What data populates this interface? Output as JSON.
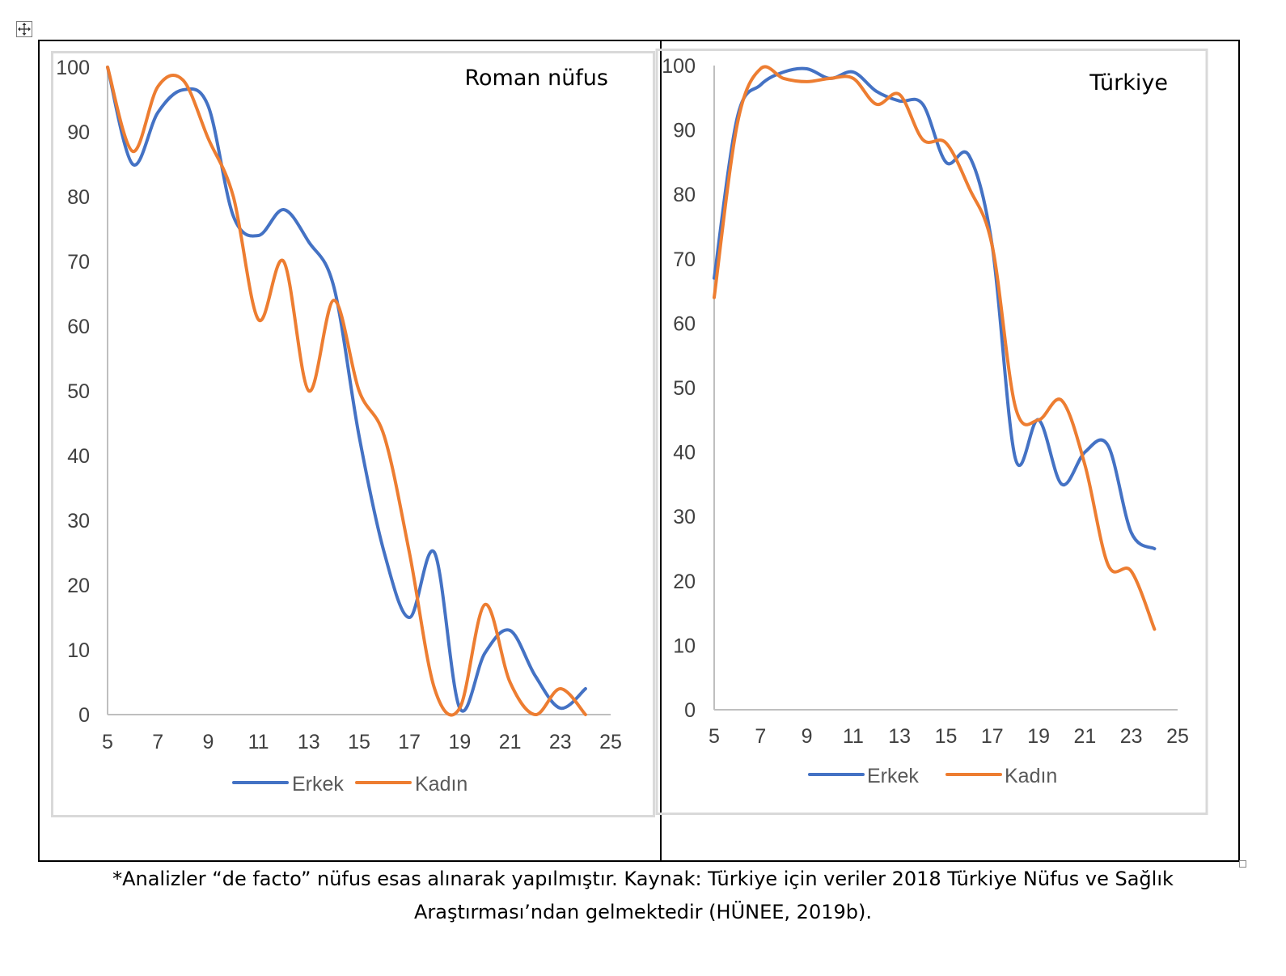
{
  "caption": {
    "line1": "*Analizler “de facto” nüfus esas alınarak yapılmıştır. Kaynak: Türkiye için veriler 2018 Türkiye Nüfus ve Sağlık",
    "line2": "Araştırması’ndan gelmektedir (HÜNEE, 2019b)."
  },
  "icons": {
    "move_handle": "move-arrows-icon",
    "resize_handle": "resize-square-icon"
  },
  "chart_data": [
    {
      "type": "line",
      "title": "Roman nüfus",
      "xlabel": "",
      "ylabel": "",
      "xlim": [
        5,
        25
      ],
      "ylim": [
        0,
        100
      ],
      "xticks": [
        "5",
        "7",
        "9",
        "11",
        "13",
        "15",
        "17",
        "19",
        "21",
        "23",
        "25"
      ],
      "yticks": [
        "0",
        "10",
        "20",
        "30",
        "40",
        "50",
        "60",
        "70",
        "80",
        "90",
        "100"
      ],
      "grid": false,
      "legend_position": "bottom",
      "x": [
        5,
        6,
        7,
        8,
        9,
        10,
        11,
        12,
        13,
        14,
        15,
        16,
        17,
        18,
        19,
        20,
        21,
        22,
        23,
        24
      ],
      "series": [
        {
          "name": "Erkek",
          "color": "#4472c4",
          "values": [
            100,
            85,
            93,
            96.5,
            94,
            77,
            74,
            78,
            73,
            66,
            43,
            25,
            15,
            25,
            1,
            9.5,
            13,
            6,
            1,
            4
          ]
        },
        {
          "name": "Kadın",
          "color": "#ed7d31",
          "values": [
            100,
            87,
            97,
            98,
            89,
            80,
            61,
            70,
            50,
            64,
            50,
            43,
            25,
            4,
            1,
            17,
            5,
            0,
            4,
            0
          ]
        }
      ]
    },
    {
      "type": "line",
      "title": "Türkiye",
      "xlabel": "",
      "ylabel": "",
      "xlim": [
        5,
        25
      ],
      "ylim": [
        0,
        100
      ],
      "xticks": [
        "5",
        "7",
        "9",
        "11",
        "13",
        "15",
        "17",
        "19",
        "21",
        "23",
        "25"
      ],
      "yticks": [
        "0",
        "10",
        "20",
        "30",
        "40",
        "50",
        "60",
        "70",
        "80",
        "90",
        "100"
      ],
      "grid": false,
      "legend_position": "bottom",
      "x": [
        5,
        6,
        7,
        8,
        9,
        10,
        11,
        12,
        13,
        14,
        15,
        16,
        17,
        18,
        19,
        20,
        21,
        22,
        23,
        24
      ],
      "series": [
        {
          "name": "Erkek",
          "color": "#4472c4",
          "values": [
            67,
            92,
            97,
            99,
            99.5,
            98,
            99,
            96,
            94.5,
            94,
            85,
            86,
            72,
            39,
            45,
            35,
            40,
            41,
            27.5,
            25
          ]
        },
        {
          "name": "Kadın",
          "color": "#ed7d31",
          "values": [
            64,
            91,
            99.5,
            98,
            97.5,
            98,
            98,
            94,
            95.5,
            88.5,
            88,
            81,
            72,
            47,
            45,
            48,
            38,
            22.5,
            21.5,
            12.5
          ]
        }
      ]
    }
  ]
}
